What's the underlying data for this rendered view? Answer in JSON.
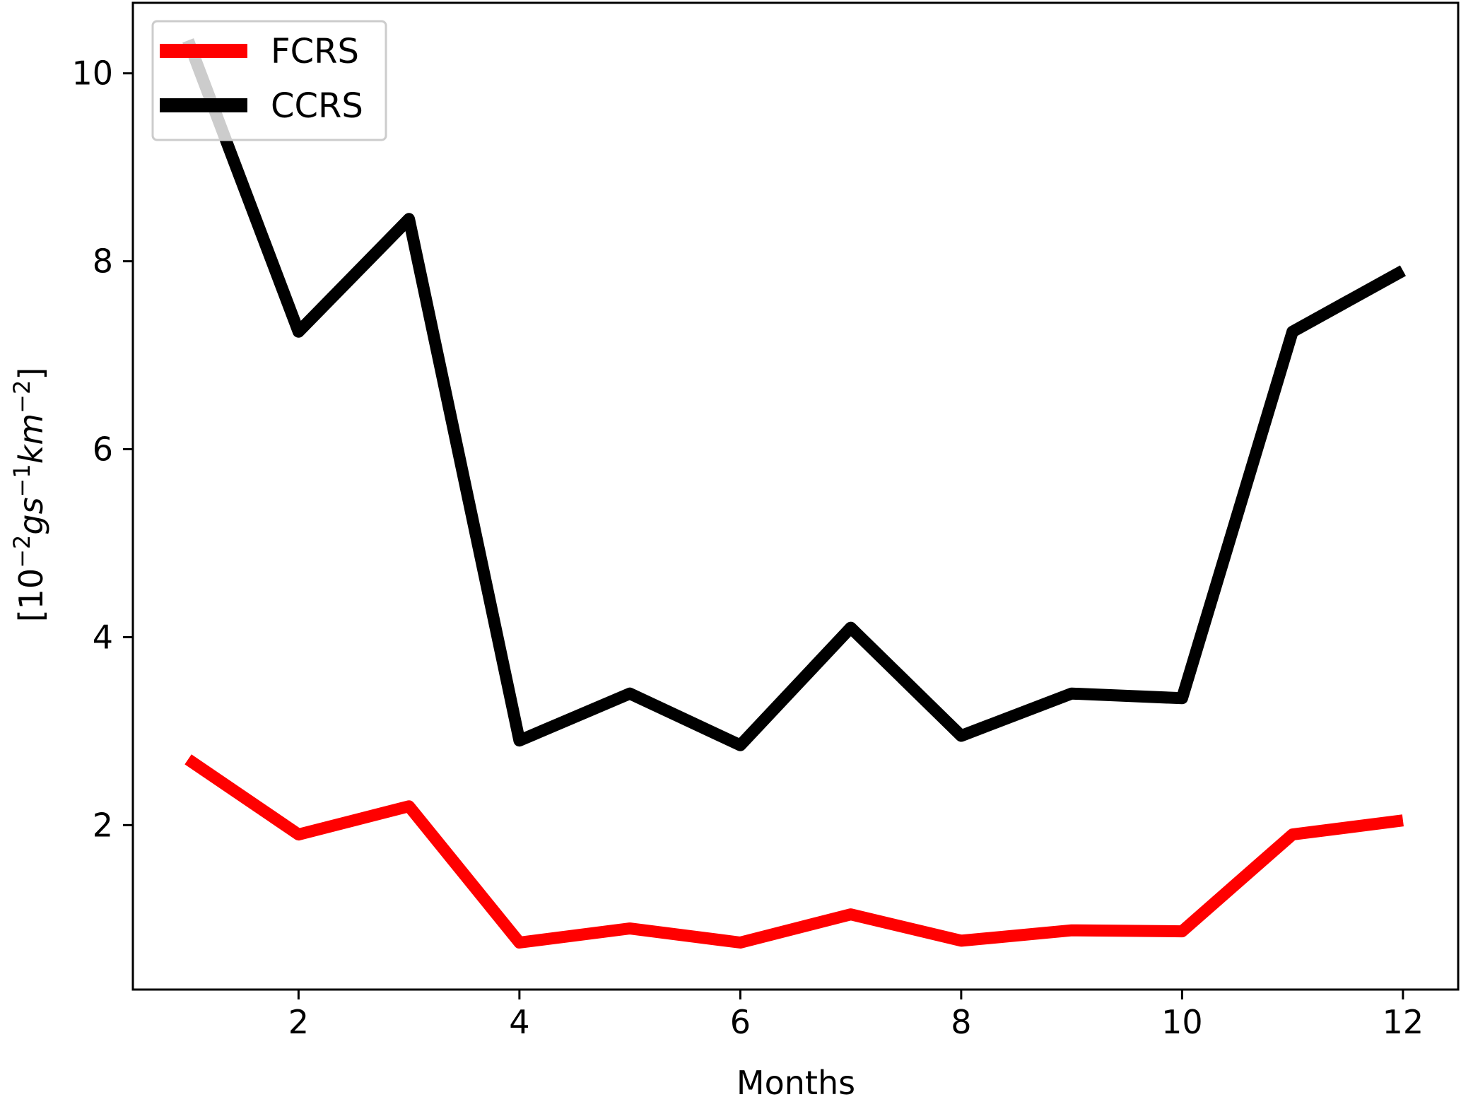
{
  "chart_data": {
    "type": "line",
    "title": "",
    "xlabel": "Months",
    "ylabel": "[10⁻²gs⁻¹km⁻²]",
    "ylabel_parts": {
      "base": "10",
      "exp1": "−2",
      "g": "g",
      "s": "s",
      "exp2": "−1",
      "km": "km",
      "exp3": "−2"
    },
    "xlim": [
      0.5,
      12.5
    ],
    "ylim": [
      0.25,
      10.75
    ],
    "x_ticks": [
      2,
      4,
      6,
      8,
      10,
      12
    ],
    "y_ticks": [
      2,
      4,
      6,
      8,
      10
    ],
    "grid": false,
    "legend": "upper-left",
    "x": [
      1,
      2,
      3,
      4,
      5,
      6,
      7,
      8,
      9,
      10,
      11,
      12
    ],
    "series": [
      {
        "name": "FCRS",
        "color": "#ff0000",
        "values": [
          2.7,
          1.9,
          2.2,
          0.75,
          0.9,
          0.75,
          1.05,
          0.77,
          0.88,
          0.87,
          1.9,
          2.05
        ]
      },
      {
        "name": "CCRS",
        "color": "#000000",
        "values": [
          10.35,
          7.25,
          8.45,
          2.9,
          3.4,
          2.85,
          4.1,
          2.95,
          3.4,
          3.35,
          7.25,
          7.9
        ]
      }
    ]
  }
}
